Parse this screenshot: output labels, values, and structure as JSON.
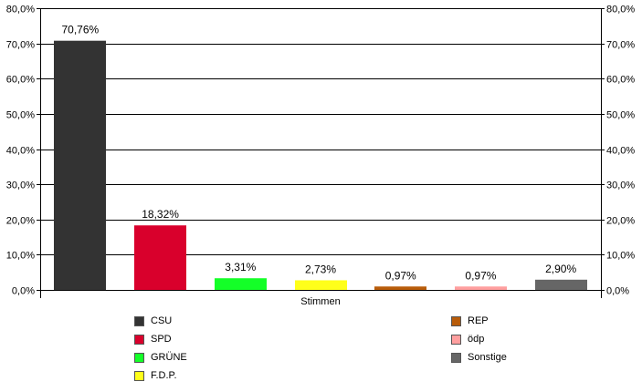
{
  "chart_data": {
    "type": "bar",
    "categories": [
      "CSU",
      "SPD",
      "GRÜNE",
      "F.D.P.",
      "REP",
      "ödp",
      "Sonstige"
    ],
    "values": [
      70.76,
      18.32,
      3.31,
      2.73,
      0.97,
      0.97,
      2.9
    ],
    "data_labels": [
      "70,76%",
      "18,32%",
      "3,31%",
      "2,73%",
      "0,97%",
      "0,97%",
      "2,90%"
    ],
    "colors": [
      "#333333",
      "#d9002c",
      "#14ff28",
      "#ffff1a",
      "#b85c0a",
      "#ff9f9f",
      "#666666"
    ],
    "xlabel": "Stimmen",
    "ylabel": "",
    "ylim": [
      0,
      80
    ],
    "yticks": [
      0,
      10,
      20,
      30,
      40,
      50,
      60,
      70,
      80
    ],
    "ytick_labels": [
      "0,0%",
      "10,0%",
      "20,0%",
      "30,0%",
      "40,0%",
      "50,0%",
      "60,0%",
      "70,0%",
      "80,0%"
    ],
    "secondary_y_axis": true,
    "grid": true,
    "legend": {
      "placement": "bottom",
      "entries": [
        "CSU",
        "SPD",
        "GRÜNE",
        "F.D.P.",
        "REP",
        "ödp",
        "Sonstige"
      ]
    }
  }
}
